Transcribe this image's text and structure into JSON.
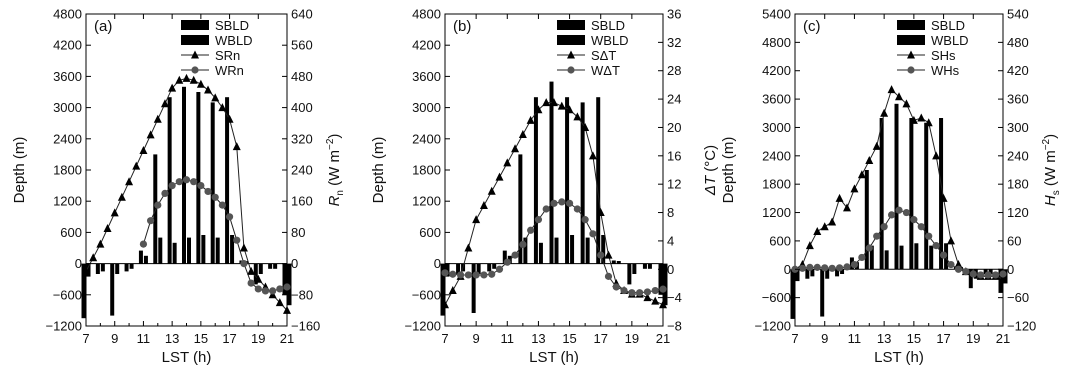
{
  "chart_data": [
    {
      "type": "line",
      "panel_label": "(a)",
      "xlabel": "LST (h)",
      "ylabel_left": "Depth (m)",
      "ylabel_right": {
        "main": "R",
        "sub": "n",
        "unit": " (W m",
        "sup": "−2",
        "close": ")"
      },
      "xlim": [
        7,
        21
      ],
      "ylim_left": [
        -1200,
        4800
      ],
      "ylim_right": [
        -160,
        640
      ],
      "x_ticks": [
        "7",
        "9",
        "11",
        "13",
        "15",
        "17",
        "19",
        "21"
      ],
      "y_left_ticks": [
        "−1200",
        "−600",
        "0",
        "600",
        "1200",
        "1800",
        "2400",
        "3000",
        "3600",
        "4200",
        "4800"
      ],
      "y_right_ticks": [
        "−160",
        "−80",
        "0",
        "80",
        "160",
        "240",
        "320",
        "400",
        "480",
        "560",
        "640"
      ],
      "legend": [
        "SBLD",
        "WBLD",
        "SRn",
        "WRn"
      ],
      "grid": false,
      "bars": {
        "x": [
          7,
          8,
          9,
          10,
          11,
          12,
          13,
          14,
          15,
          16,
          17,
          18,
          19,
          20,
          21
        ],
        "SBLD": [
          -1050,
          -200,
          -1000,
          -150,
          250,
          2100,
          3200,
          3400,
          3300,
          3100,
          3200,
          60,
          -400,
          -100,
          -600
        ],
        "WBLD": [
          -250,
          -150,
          -200,
          -100,
          150,
          500,
          400,
          500,
          550,
          500,
          550,
          50,
          -200,
          -100,
          -800
        ]
      },
      "series": [
        {
          "name": "SRn",
          "marker": "triangle",
          "x": [
            7,
            7.5,
            8,
            8.5,
            9,
            9.5,
            10,
            10.5,
            11,
            11.5,
            12,
            12.5,
            13,
            13.5,
            14,
            14.5,
            15,
            15.5,
            16,
            16.5,
            17,
            17.5,
            18,
            18.5,
            19,
            19.5,
            20,
            20.5,
            21
          ],
          "values": [
            -20,
            15,
            50,
            90,
            130,
            170,
            210,
            250,
            290,
            330,
            370,
            410,
            450,
            470,
            475,
            470,
            460,
            445,
            425,
            400,
            370,
            300,
            40,
            -20,
            -40,
            -60,
            -80,
            -100,
            -120
          ]
        },
        {
          "name": "WRn",
          "marker": "circle",
          "x": [
            11,
            11.5,
            12,
            12.5,
            13,
            13.5,
            14,
            14.5,
            15,
            15.5,
            16,
            16.5,
            17,
            17.5,
            18,
            18.5,
            19,
            19.5,
            20,
            20.5,
            21
          ],
          "values": [
            50,
            110,
            150,
            180,
            200,
            210,
            215,
            210,
            200,
            185,
            170,
            150,
            120,
            60,
            0,
            -50,
            -65,
            -70,
            -70,
            -65,
            -60
          ]
        }
      ]
    },
    {
      "type": "line",
      "panel_label": "(b)",
      "xlabel": "LST (h)",
      "ylabel_left": "Depth (m)",
      "ylabel_right": {
        "main": "ΔT",
        "sub": "",
        "unit": " (°C)",
        "sup": "",
        "close": ""
      },
      "xlim": [
        7,
        21
      ],
      "ylim_left": [
        -1200,
        4800
      ],
      "ylim_right": [
        -8,
        36
      ],
      "x_ticks": [
        "7",
        "9",
        "11",
        "13",
        "15",
        "17",
        "19",
        "21"
      ],
      "y_left_ticks": [
        "−1200",
        "−600",
        "0",
        "600",
        "1200",
        "1800",
        "2400",
        "3000",
        "3600",
        "4200",
        "4800"
      ],
      "y_right_ticks": [
        "−8",
        "−4",
        "0",
        "4",
        "8",
        "12",
        "16",
        "20",
        "24",
        "28",
        "32",
        "36"
      ],
      "legend": [
        "SBLD",
        "WBLD",
        "SΔT",
        "WΔT"
      ],
      "grid": false,
      "bars": {
        "x": [
          7,
          8,
          9,
          10,
          11,
          12,
          13,
          14,
          15,
          16,
          17,
          18,
          19,
          20,
          21
        ],
        "SBLD": [
          -1000,
          -200,
          -950,
          -150,
          250,
          2100,
          3200,
          3500,
          3200,
          3100,
          3200,
          60,
          -400,
          -100,
          -600
        ],
        "WBLD": [
          -250,
          -150,
          -200,
          -100,
          150,
          500,
          400,
          500,
          550,
          500,
          550,
          50,
          -200,
          -100,
          -800
        ]
      },
      "series": [
        {
          "name": "SΔT",
          "marker": "triangle",
          "x": [
            7,
            7.5,
            8,
            8.5,
            9,
            9.5,
            10,
            10.5,
            11,
            11.5,
            12,
            12.5,
            13,
            13.5,
            14,
            14.5,
            15,
            15.5,
            16,
            16.5,
            17,
            17.5,
            18,
            18.5,
            19,
            19.5,
            20,
            20.5,
            21
          ],
          "values": [
            -5,
            -3,
            -1,
            3,
            7,
            9,
            11,
            13,
            15,
            17,
            19,
            21,
            22.5,
            23.5,
            23.5,
            23,
            22.5,
            21.5,
            20,
            16,
            8,
            2,
            -2,
            -3,
            -3.5,
            -3.5,
            -4,
            -4.5,
            -5
          ]
        },
        {
          "name": "WΔT",
          "marker": "circle",
          "x": [
            7,
            7.5,
            8,
            8.5,
            9,
            9.5,
            10,
            10.5,
            11,
            11.5,
            12,
            12.5,
            13,
            13.5,
            14,
            14.5,
            15,
            15.5,
            16,
            16.5,
            17,
            17.5,
            18,
            18.5,
            19,
            19.5,
            20,
            20.5,
            21
          ],
          "values": [
            -0.5,
            -0.7,
            -0.8,
            -0.8,
            -0.8,
            -0.8,
            -0.7,
            0,
            1,
            2,
            3.5,
            5.5,
            7,
            8.5,
            9.3,
            9.5,
            9.3,
            8.5,
            7,
            5,
            2,
            -1,
            -2.5,
            -3,
            -3.3,
            -3.3,
            -3.2,
            -3,
            -2.8
          ]
        }
      ]
    },
    {
      "type": "line",
      "panel_label": "(c)",
      "xlabel": "LST (h)",
      "ylabel_left": "Depth (m)",
      "ylabel_right": {
        "main": "H",
        "sub": "s",
        "unit": " (W m",
        "sup": "−2",
        "close": ")"
      },
      "xlim": [
        7,
        21
      ],
      "ylim_left": [
        -1200,
        5400
      ],
      "ylim_right": [
        -120,
        540
      ],
      "x_ticks": [
        "7",
        "9",
        "11",
        "13",
        "15",
        "17",
        "19",
        "21"
      ],
      "y_left_ticks": [
        "−1200",
        "−600",
        "0",
        "600",
        "1200",
        "1800",
        "2400",
        "3000",
        "3600",
        "4200",
        "4800",
        "5400"
      ],
      "y_right_ticks": [
        "−120",
        "−60",
        "0",
        "60",
        "120",
        "180",
        "240",
        "300",
        "360",
        "420",
        "480",
        "540"
      ],
      "legend": [
        "SBLD",
        "WBLD",
        "SHs",
        "WHs"
      ],
      "grid": false,
      "bars": {
        "x": [
          7,
          8,
          9,
          10,
          11,
          12,
          13,
          14,
          15,
          16,
          17,
          18,
          19,
          20,
          21
        ],
        "SBLD": [
          -1050,
          -200,
          -1000,
          -150,
          250,
          2100,
          3200,
          3500,
          3200,
          3100,
          3200,
          60,
          -400,
          -100,
          -500
        ],
        "WBLD": [
          -250,
          -150,
          -200,
          -100,
          150,
          500,
          400,
          500,
          550,
          500,
          550,
          50,
          -200,
          -100,
          -300
        ]
      },
      "series": [
        {
          "name": "SHs",
          "marker": "triangle",
          "x": [
            7,
            7.5,
            8,
            8.5,
            9,
            9.5,
            10,
            10.5,
            11,
            11.5,
            12,
            12.5,
            13,
            13.5,
            14,
            14.5,
            15,
            15.5,
            16,
            16.5,
            17,
            17.5,
            18,
            18.5,
            19,
            19.5,
            20,
            20.5,
            21
          ],
          "values": [
            0,
            10,
            50,
            80,
            90,
            100,
            150,
            130,
            170,
            200,
            230,
            260,
            330,
            380,
            365,
            350,
            315,
            320,
            310,
            240,
            150,
            60,
            10,
            -5,
            -10,
            -15,
            -15,
            -15,
            -20
          ]
        },
        {
          "name": "WHs",
          "marker": "circle",
          "x": [
            7,
            7.5,
            8,
            8.5,
            9,
            9.5,
            10,
            10.5,
            11,
            11.5,
            12,
            12.5,
            13,
            13.5,
            14,
            14.5,
            15,
            15.5,
            16,
            16.5,
            17,
            17.5,
            18,
            18.5,
            19,
            19.5,
            20,
            20.5,
            21
          ],
          "values": [
            0,
            2,
            4,
            4,
            3,
            2,
            3,
            5,
            10,
            25,
            45,
            70,
            90,
            115,
            125,
            120,
            105,
            90,
            70,
            50,
            30,
            10,
            0,
            -5,
            -10,
            -12,
            -12,
            -12,
            -10
          ]
        }
      ]
    }
  ]
}
